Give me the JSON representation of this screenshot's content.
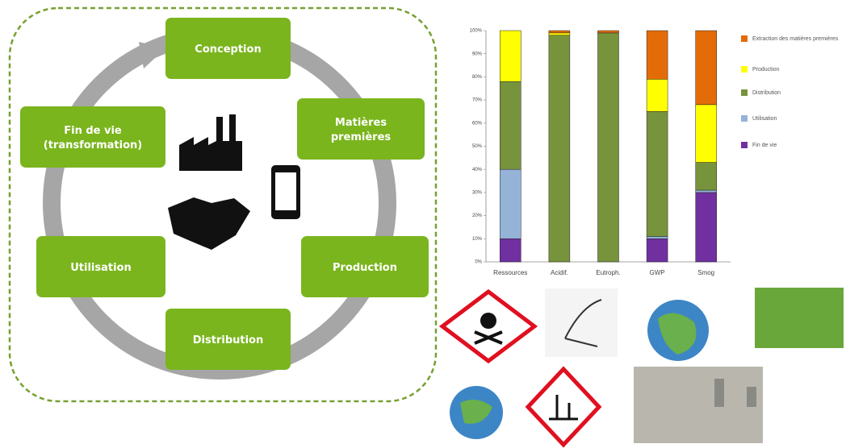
{
  "diagram": {
    "nodes": [
      {
        "lines": [
          "Conception"
        ]
      },
      {
        "lines": [
          "Matières",
          "premières"
        ]
      },
      {
        "lines": [
          "Production"
        ]
      },
      {
        "lines": [
          "Distribution"
        ]
      },
      {
        "lines": [
          "Utilisation"
        ]
      },
      {
        "lines": [
          "Fin de vie",
          "(transformation)"
        ]
      }
    ]
  },
  "chart_data": {
    "type": "stacked_bar",
    "categories": [
      "Ressources",
      "Acidif.",
      "Eutroph.",
      "GWP",
      "Smog"
    ],
    "series": [
      {
        "name": "Fin de vie",
        "color": "#7030a0",
        "values": [
          10,
          0,
          0,
          10,
          30
        ]
      },
      {
        "name": "Utilisation",
        "color": "#95b3d7",
        "values": [
          30,
          0,
          0,
          1,
          1
        ]
      },
      {
        "name": "Distribution",
        "color": "#77933c",
        "values": [
          38,
          98,
          99,
          54,
          12
        ]
      },
      {
        "name": "Production",
        "color": "#ffff00",
        "values": [
          22,
          1,
          0,
          14,
          25
        ]
      },
      {
        "name": "Extraction des matières premières",
        "color": "#e36c09",
        "values": [
          0,
          1,
          1,
          21,
          32
        ]
      }
    ],
    "ylim": [
      0,
      100
    ],
    "yticks": [
      {
        "value": 0,
        "label": "0%"
      },
      {
        "value": 10,
        "label": "10%"
      },
      {
        "value": 20,
        "label": "20%"
      },
      {
        "value": 30,
        "label": "30%"
      },
      {
        "value": 40,
        "label": "40%"
      },
      {
        "value": 50,
        "label": "50%"
      },
      {
        "value": 60,
        "label": "60%"
      },
      {
        "value": 70,
        "label": "70%"
      },
      {
        "value": 80,
        "label": "80%"
      },
      {
        "value": 90,
        "label": "90%"
      },
      {
        "value": 100,
        "label": "100%"
      }
    ]
  }
}
